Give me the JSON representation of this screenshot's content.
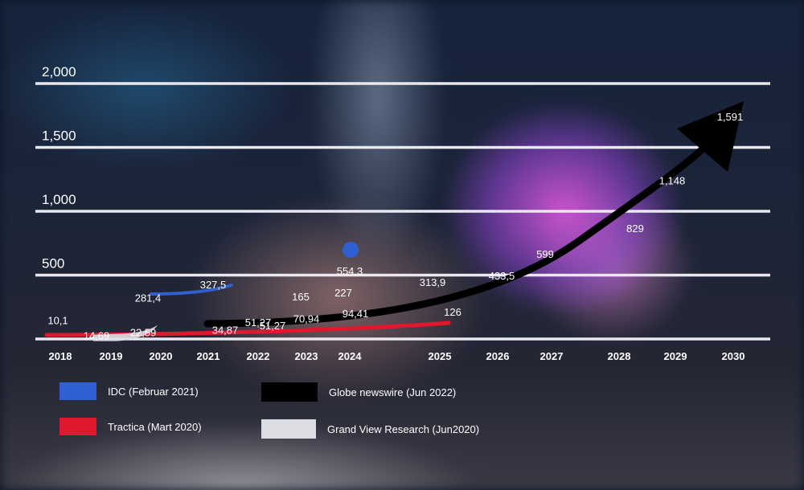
{
  "chart_data": {
    "type": "line",
    "title": "",
    "xlabel": "",
    "ylabel": "",
    "ylim": [
      0,
      2000
    ],
    "yticks": [
      "2,000",
      "1,500",
      "1,000",
      "500"
    ],
    "ytick_values": [
      2000,
      1500,
      1000,
      500
    ],
    "x_categories": [
      "2018",
      "2019",
      "2020",
      "2021",
      "2022",
      "2023",
      "2024",
      "2025",
      "2026",
      "2027",
      "2028",
      "2029",
      "2030"
    ],
    "grid": true,
    "legend_placement": "bottom-left",
    "series": [
      {
        "name": "IDC  (Februar 2021)",
        "color": "#2f5fd0",
        "style": "line",
        "points": [
          [
            2020,
            281.4
          ],
          [
            2021,
            327.5
          ]
        ],
        "labels": [
          "281,4",
          "327,5"
        ],
        "extra_points": [
          [
            2024,
            554.3
          ]
        ],
        "extra_labels": [
          "554,3"
        ]
      },
      {
        "name": "Tractica (Mart 2020)",
        "color": "#e0182e",
        "style": "line",
        "points": [
          [
            2018,
            10.1
          ],
          [
            2022,
            51.27
          ],
          [
            2023,
            70.94
          ],
          [
            2024,
            94.41
          ],
          [
            2025,
            126
          ]
        ],
        "labels": [
          "10,1",
          "51,27",
          "70,94",
          "94,41",
          "126"
        ]
      },
      {
        "name": "Globe newswire (Jun 2022)",
        "color": "#000000",
        "style": "arrow",
        "points": [
          [
            2021,
            34.87
          ],
          [
            2022,
            51.27
          ],
          [
            2023,
            165
          ],
          [
            2024,
            227
          ],
          [
            2025,
            313.9
          ],
          [
            2026,
            433.5
          ],
          [
            2027,
            599
          ],
          [
            2028,
            829
          ],
          [
            2029,
            1148
          ],
          [
            2030,
            1591
          ]
        ],
        "labels": [
          "34,87",
          "51,27",
          "165",
          "227",
          "313,9",
          "433,5",
          "599",
          "829",
          "1,148",
          "1,591"
        ]
      },
      {
        "name": "Grand View Research (Jun2020)",
        "color": "#dcdde3",
        "style": "band",
        "points": [
          [
            2019,
            14.69
          ],
          [
            2020,
            22.59
          ]
        ],
        "labels": [
          "14,69",
          "22,59"
        ]
      }
    ]
  }
}
